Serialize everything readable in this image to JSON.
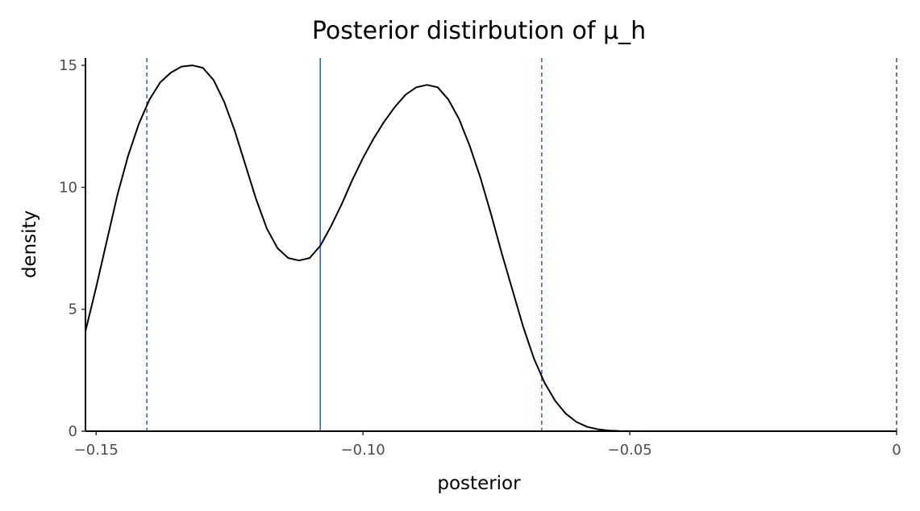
{
  "chart_data": {
    "type": "line",
    "title": "Posterior distirbution of μ_h",
    "xlabel": "posterior",
    "ylabel": "density",
    "xlim": [
      -0.152,
      0.0
    ],
    "ylim": [
      0,
      15.3
    ],
    "x_ticks": [
      -0.15,
      -0.1,
      -0.05,
      0
    ],
    "x_tick_labels": [
      "−0.15",
      "−0.10",
      "−0.05",
      "0"
    ],
    "y_ticks": [
      0,
      5,
      10,
      15
    ],
    "y_tick_labels": [
      "0",
      "5",
      "10",
      "15"
    ],
    "grid": false,
    "legend": "none",
    "series": [
      {
        "color": "#000000",
        "x": [
          -0.152,
          -0.15,
          -0.148,
          -0.146,
          -0.144,
          -0.142,
          -0.14,
          -0.138,
          -0.136,
          -0.134,
          -0.132,
          -0.13,
          -0.128,
          -0.126,
          -0.124,
          -0.122,
          -0.12,
          -0.118,
          -0.116,
          -0.114,
          -0.112,
          -0.11,
          -0.108,
          -0.106,
          -0.104,
          -0.102,
          -0.1,
          -0.098,
          -0.096,
          -0.094,
          -0.092,
          -0.09,
          -0.088,
          -0.086,
          -0.084,
          -0.082,
          -0.08,
          -0.078,
          -0.076,
          -0.074,
          -0.072,
          -0.07,
          -0.068,
          -0.066,
          -0.064,
          -0.062,
          -0.06,
          -0.058,
          -0.056,
          -0.054,
          -0.052,
          -0.05,
          -0.048,
          -0.045,
          -0.04,
          -0.03,
          -0.02,
          -0.01,
          0.0
        ],
        "y": [
          4.1,
          5.9,
          7.8,
          9.7,
          11.3,
          12.6,
          13.6,
          14.3,
          14.7,
          14.95,
          15.0,
          14.9,
          14.4,
          13.5,
          12.3,
          10.9,
          9.5,
          8.3,
          7.5,
          7.1,
          7.0,
          7.1,
          7.6,
          8.4,
          9.3,
          10.3,
          11.2,
          12.0,
          12.7,
          13.3,
          13.8,
          14.1,
          14.2,
          14.1,
          13.6,
          12.8,
          11.7,
          10.4,
          8.9,
          7.3,
          5.8,
          4.3,
          3.0,
          2.0,
          1.25,
          0.72,
          0.38,
          0.18,
          0.08,
          0.03,
          0.01,
          0.005,
          0.002,
          0.0,
          0.0,
          0.0,
          0.0,
          0.0,
          0.0
        ]
      }
    ],
    "vlines": [
      {
        "x": -0.1405,
        "style": "dashed",
        "color": "#3366cc"
      },
      {
        "x": -0.108,
        "style": "solid",
        "color": "#3366cc"
      },
      {
        "x": -0.0665,
        "style": "dashed",
        "color": "#3366cc"
      },
      {
        "x": 0.0,
        "style": "dashed",
        "color": "#555555"
      }
    ]
  }
}
